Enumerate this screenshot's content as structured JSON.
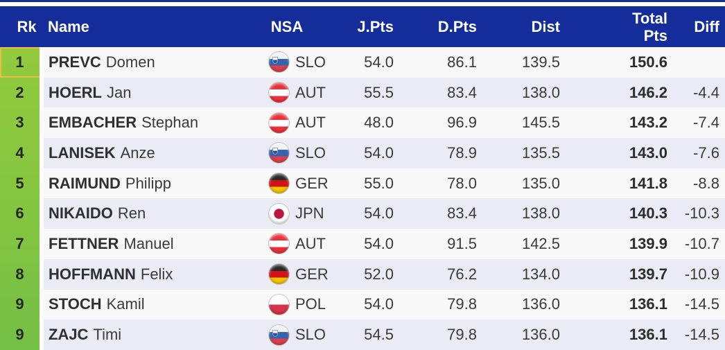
{
  "colors": {
    "header_bg": "#152D9B",
    "top_strip": "#152D9B",
    "rank_column_green": "#83C540",
    "highlight_border": "#E9BC4C",
    "row_bg": "#F8F8F9",
    "row_alt_bg": "#EAEBF4"
  },
  "table": {
    "headers": {
      "rk": "Rk",
      "name": "Name",
      "nsa": "NSA",
      "jpts": "J.Pts",
      "dpts": "D.Pts",
      "dist": "Dist",
      "total_line1": "Total",
      "total_line2": "Pts",
      "diff": "Diff"
    },
    "rows": [
      {
        "rank": "1",
        "surname": "PREVC",
        "given": "Domen",
        "nsa": "SLO",
        "flag": "slo",
        "jpts": "54.0",
        "dpts": "86.1",
        "dist": "139.5",
        "total": "150.6",
        "diff": "",
        "highlight": true
      },
      {
        "rank": "2",
        "surname": "HOERL",
        "given": "Jan",
        "nsa": "AUT",
        "flag": "aut",
        "jpts": "55.5",
        "dpts": "83.4",
        "dist": "138.0",
        "total": "146.2",
        "diff": "-4.4",
        "highlight": false
      },
      {
        "rank": "3",
        "surname": "EMBACHER",
        "given": "Stephan",
        "nsa": "AUT",
        "flag": "aut",
        "jpts": "48.0",
        "dpts": "96.9",
        "dist": "145.5",
        "total": "143.2",
        "diff": "-7.4",
        "highlight": false
      },
      {
        "rank": "4",
        "surname": "LANISEK",
        "given": "Anze",
        "nsa": "SLO",
        "flag": "slo",
        "jpts": "54.0",
        "dpts": "78.9",
        "dist": "135.5",
        "total": "143.0",
        "diff": "-7.6",
        "highlight": false
      },
      {
        "rank": "5",
        "surname": "RAIMUND",
        "given": "Philipp",
        "nsa": "GER",
        "flag": "ger",
        "jpts": "55.0",
        "dpts": "78.0",
        "dist": "135.0",
        "total": "141.8",
        "diff": "-8.8",
        "highlight": false
      },
      {
        "rank": "6",
        "surname": "NIKAIDO",
        "given": "Ren",
        "nsa": "JPN",
        "flag": "jpn",
        "jpts": "54.0",
        "dpts": "83.4",
        "dist": "138.0",
        "total": "140.3",
        "diff": "-10.3",
        "highlight": false
      },
      {
        "rank": "7",
        "surname": "FETTNER",
        "given": "Manuel",
        "nsa": "AUT",
        "flag": "aut",
        "jpts": "54.0",
        "dpts": "91.5",
        "dist": "142.5",
        "total": "139.9",
        "diff": "-10.7",
        "highlight": false
      },
      {
        "rank": "8",
        "surname": "HOFFMANN",
        "given": "Felix",
        "nsa": "GER",
        "flag": "ger",
        "jpts": "52.0",
        "dpts": "76.2",
        "dist": "134.0",
        "total": "139.7",
        "diff": "-10.9",
        "highlight": false
      },
      {
        "rank": "9",
        "surname": "STOCH",
        "given": "Kamil",
        "nsa": "POL",
        "flag": "pol",
        "jpts": "54.0",
        "dpts": "79.8",
        "dist": "136.0",
        "total": "136.1",
        "diff": "-14.5",
        "highlight": false
      },
      {
        "rank": "9",
        "surname": "ZAJC",
        "given": "Timi",
        "nsa": "SLO",
        "flag": "slo",
        "jpts": "54.5",
        "dpts": "79.8",
        "dist": "136.0",
        "total": "136.1",
        "diff": "-14.5",
        "highlight": false
      }
    ]
  }
}
